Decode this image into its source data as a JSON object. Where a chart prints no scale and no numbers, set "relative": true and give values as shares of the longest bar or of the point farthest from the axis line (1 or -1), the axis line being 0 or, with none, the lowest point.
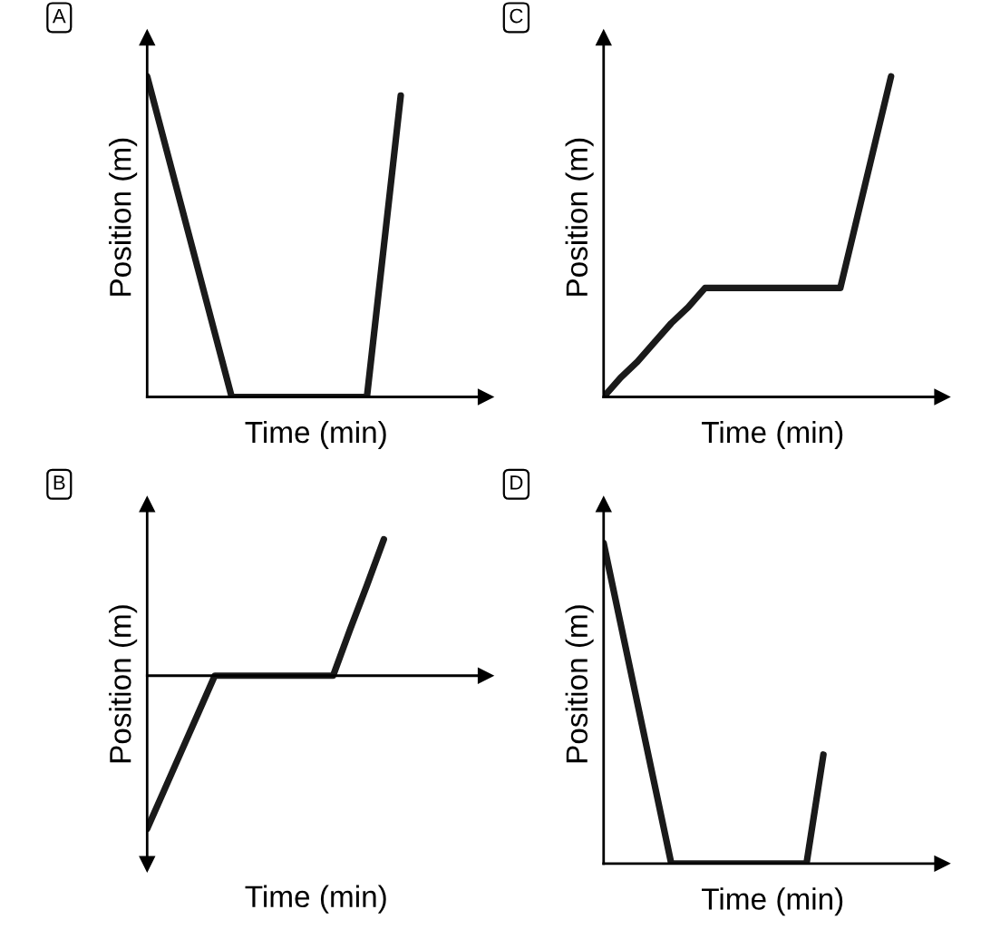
{
  "chart_data": [
    {
      "type": "line",
      "title": "A",
      "xlabel": "Time (min)",
      "ylabel": "Position (m)",
      "relative": true,
      "marker": "none",
      "line_style": "solid",
      "categories": [
        null,
        null,
        null,
        null,
        null,
        null,
        null,
        null,
        null,
        null,
        null,
        null,
        null,
        null,
        null,
        null,
        null,
        null,
        null,
        null
      ],
      "series": [
        {
          "color": "#1a1a1a",
          "values": [
            1,
            0.8,
            0.6,
            0.4,
            0.2,
            0,
            0,
            0,
            0,
            0,
            0,
            0,
            0,
            0,
            0.47,
            0.94,
            null,
            null,
            null,
            null
          ]
        }
      ]
    },
    {
      "type": "line",
      "title": "C",
      "xlabel": "Time (min)",
      "ylabel": "Position (m)",
      "relative": true,
      "marker": "none",
      "line_style": "solid",
      "categories": [
        null,
        null,
        null,
        null,
        null,
        null,
        null,
        null,
        null,
        null,
        null,
        null,
        null,
        null,
        null,
        null,
        null,
        null,
        null,
        null
      ],
      "series": [
        {
          "color": "#1a1a1a",
          "values": [
            0,
            0.06,
            0.11,
            0.17,
            0.23,
            0.28,
            0.34,
            0.34,
            0.34,
            0.34,
            0.34,
            0.34,
            0.34,
            0.34,
            0.34,
            0.56,
            0.78,
            1,
            null,
            null
          ]
        }
      ]
    },
    {
      "type": "line",
      "title": "B",
      "xlabel": "Time (min)",
      "ylabel": "Position (m)",
      "relative": true,
      "marker": "none",
      "line_style": "solid",
      "categories": [
        null,
        null,
        null,
        null,
        null,
        null,
        null,
        null,
        null,
        null,
        null,
        null,
        null,
        null,
        null,
        null,
        null,
        null,
        null,
        null
      ],
      "series": [
        {
          "color": "#1a1a1a",
          "values": [
            -1,
            -0.75,
            -0.5,
            -0.25,
            0,
            0,
            0,
            0,
            0,
            0,
            0,
            0,
            0.3,
            0.59,
            0.89,
            null,
            null,
            null,
            null,
            null
          ]
        }
      ]
    },
    {
      "type": "line",
      "title": "D",
      "xlabel": "Time (min)",
      "ylabel": "Position (m)",
      "relative": true,
      "marker": "none",
      "line_style": "solid",
      "categories": [
        null,
        null,
        null,
        null,
        null,
        null,
        null,
        null,
        null,
        null,
        null,
        null,
        null,
        null,
        null,
        null,
        null,
        null,
        null,
        null
      ],
      "series": [
        {
          "color": "#1a1a1a",
          "values": [
            1,
            0.75,
            0.5,
            0.25,
            0,
            0,
            0,
            0,
            0,
            0,
            0,
            0,
            0,
            0.34,
            null,
            null,
            null,
            null,
            null,
            null
          ]
        }
      ]
    }
  ]
}
